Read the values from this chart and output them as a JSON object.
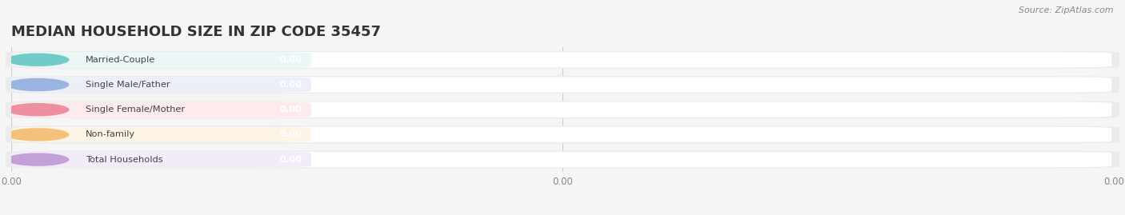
{
  "title": "MEDIAN HOUSEHOLD SIZE IN ZIP CODE 35457",
  "categories": [
    "Married-Couple",
    "Single Male/Father",
    "Single Female/Mother",
    "Non-family",
    "Total Households"
  ],
  "values": [
    0.0,
    0.0,
    0.0,
    0.0,
    0.0
  ],
  "bar_colors": [
    "#72cbc6",
    "#9ab4e0",
    "#ee8fa0",
    "#f5c07a",
    "#c4a0d8"
  ],
  "bar_bg_colors": [
    "#eaf7f6",
    "#eaeff8",
    "#fceaed",
    "#fef4e6",
    "#f2ecf8"
  ],
  "outer_bg_color": "#ebebeb",
  "source_text": "Source: ZipAtlas.com",
  "background_color": "#f5f5f5",
  "title_fontsize": 13,
  "bar_height": 0.62,
  "xtick_labels": [
    "0.00",
    "0.00",
    "0.00"
  ],
  "xtick_positions": [
    0.0,
    0.5,
    1.0
  ]
}
